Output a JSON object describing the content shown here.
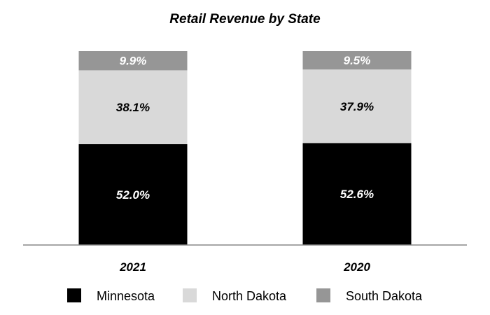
{
  "chart_data": {
    "type": "bar",
    "stacked": true,
    "title": "Retail Revenue by State",
    "xlabel": "",
    "ylabel": "",
    "ylim": [
      0,
      100
    ],
    "grid": false,
    "legend_position": "bottom",
    "categories": [
      "2021",
      "2020"
    ],
    "series": [
      {
        "name": "Minnesota",
        "color": "#000000",
        "label_color": "#ffffff",
        "values": [
          52.0,
          52.6
        ],
        "labels": [
          "52.0%",
          "52.6%"
        ]
      },
      {
        "name": "North Dakota",
        "color": "#d9d9d9",
        "label_color": "#000000",
        "values": [
          38.1,
          37.9
        ],
        "labels": [
          "38.1%",
          "37.9%"
        ]
      },
      {
        "name": "South Dakota",
        "color": "#969696",
        "label_color": "#ffffff",
        "values": [
          9.9,
          9.5
        ],
        "labels": [
          "9.9%",
          "9.5%"
        ]
      }
    ]
  }
}
